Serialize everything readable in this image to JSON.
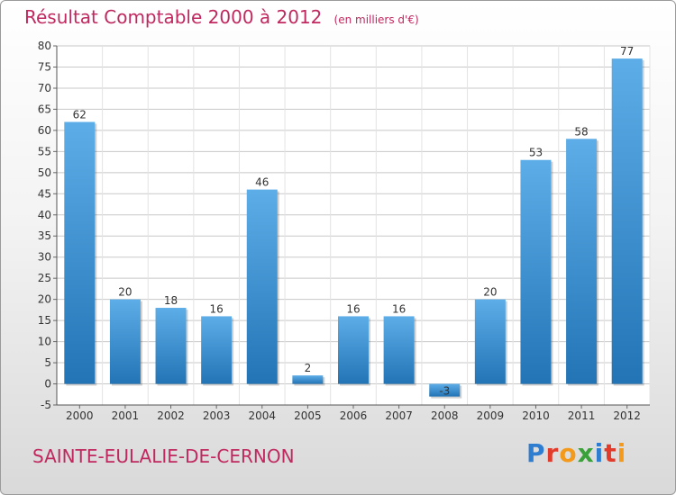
{
  "header": {
    "title": "Résultat Comptable 2000 à 2012",
    "subtitle": "(en milliers d'€)"
  },
  "footer": {
    "commune": "SAINTE-EULALIE-DE-CERNON",
    "logo": "Proxiti",
    "logo_colors": [
      "#2e7dd1",
      "#e23b2b",
      "#f39a1c",
      "#3aa03a",
      "#2e7dd1",
      "#e23b2b",
      "#f39a1c"
    ]
  },
  "colors": {
    "bar_top": "#5dade8",
    "bar_bottom": "#2274b5",
    "title": "#c0295f",
    "grid": "#c8c8c8"
  },
  "chart_data": {
    "type": "bar",
    "categories": [
      "2000",
      "2001",
      "2002",
      "2003",
      "2004",
      "2005",
      "2006",
      "2007",
      "2008",
      "2009",
      "2010",
      "2011",
      "2012"
    ],
    "values": [
      62,
      20,
      18,
      16,
      46,
      2,
      16,
      16,
      -3,
      20,
      53,
      58,
      77
    ],
    "ylim": [
      -5,
      80
    ],
    "yticks": [
      -5,
      0,
      5,
      10,
      15,
      20,
      25,
      30,
      35,
      40,
      45,
      50,
      55,
      60,
      65,
      70,
      75,
      80
    ],
    "grid": true
  }
}
